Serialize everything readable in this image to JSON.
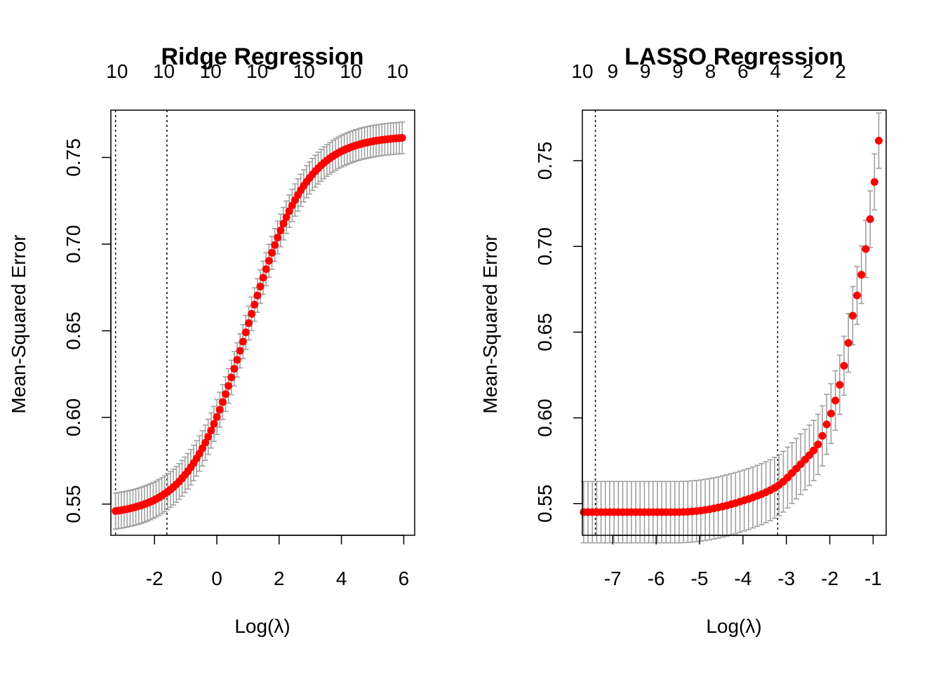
{
  "colors": {
    "points": "#ff0000",
    "errorbars": "#a0a0a0",
    "axes": "#000000",
    "background": "#ffffff"
  },
  "chart_data": [
    {
      "type": "scatter",
      "title": "Ridge Regression",
      "xlabel": "Log(λ)",
      "ylabel": "Mean-Squared Error",
      "xlim": [
        -3.4,
        6.35
      ],
      "ylim": [
        0.532,
        0.7773
      ],
      "x_ticks": [
        -2,
        0,
        2,
        4,
        6
      ],
      "x_tick_labels": [
        "-2",
        "0",
        "2",
        "4",
        "6"
      ],
      "y_ticks": [
        0.55,
        0.6,
        0.65,
        0.7,
        0.75
      ],
      "y_tick_labels": [
        "0.55",
        "0.60",
        "0.65",
        "0.70",
        "0.75"
      ],
      "top_axis_ticks": [
        -3.2,
        -1.7,
        -0.2,
        1.3,
        2.8,
        4.3,
        5.8
      ],
      "top_axis_labels": [
        "10",
        "10",
        "10",
        "10",
        "10",
        "10",
        "10"
      ],
      "vlines": [
        -3.25,
        -1.6
      ],
      "grid": false,
      "curve": {
        "type": "logistic",
        "x_from": -3.25,
        "x_to": 5.95,
        "n_points": 100,
        "y_low": 0.5435,
        "y_high": 0.7625,
        "midpoint": 1.0,
        "scale": 0.95
      },
      "errorbars": {
        "se_low": 0.0105,
        "se_high": 0.009
      }
    },
    {
      "type": "scatter",
      "title": "LASSO Regression",
      "xlabel": "Log(λ)",
      "ylabel": "Mean-Squared Error",
      "xlim": [
        -7.7,
        -0.7
      ],
      "ylim": [
        0.5315,
        0.7795
      ],
      "x_ticks": [
        -7,
        -6,
        -5,
        -4,
        -3,
        -2,
        -1
      ],
      "x_tick_labels": [
        "-7",
        "-6",
        "-5",
        "-4",
        "-3",
        "-2",
        "-1"
      ],
      "y_ticks": [
        0.55,
        0.6,
        0.65,
        0.7,
        0.75
      ],
      "y_tick_labels": [
        "0.55",
        "0.60",
        "0.65",
        "0.70",
        "0.75"
      ],
      "top_axis_ticks": [
        -7.7,
        -7.0,
        -6.25,
        -5.5,
        -4.75,
        -4.0,
        -3.25,
        -2.5,
        -1.75
      ],
      "top_axis_labels": [
        "10",
        "9",
        "9",
        "9",
        "8",
        "6",
        "4",
        "2",
        "2"
      ],
      "vlines": [
        -7.4,
        -3.2
      ],
      "grid": false,
      "points": [
        [
          -7.67,
          0.545
        ],
        [
          -7.57,
          0.545
        ],
        [
          -7.47,
          0.545
        ],
        [
          -7.37,
          0.545
        ],
        [
          -7.27,
          0.545
        ],
        [
          -7.17,
          0.545
        ],
        [
          -7.07,
          0.545
        ],
        [
          -6.97,
          0.545
        ],
        [
          -6.87,
          0.545
        ],
        [
          -6.77,
          0.545
        ],
        [
          -6.67,
          0.545
        ],
        [
          -6.57,
          0.545
        ],
        [
          -6.47,
          0.545
        ],
        [
          -6.37,
          0.545
        ],
        [
          -6.27,
          0.545
        ],
        [
          -6.17,
          0.545
        ],
        [
          -6.07,
          0.545
        ],
        [
          -5.97,
          0.545
        ],
        [
          -5.87,
          0.545
        ],
        [
          -5.77,
          0.545
        ],
        [
          -5.67,
          0.545
        ],
        [
          -5.57,
          0.545
        ],
        [
          -5.47,
          0.545
        ],
        [
          -5.37,
          0.5451
        ],
        [
          -5.27,
          0.5452
        ],
        [
          -5.17,
          0.5454
        ],
        [
          -5.07,
          0.5456
        ],
        [
          -4.97,
          0.5459
        ],
        [
          -4.87,
          0.5463
        ],
        [
          -4.77,
          0.5467
        ],
        [
          -4.67,
          0.5472
        ],
        [
          -4.57,
          0.5477
        ],
        [
          -4.47,
          0.5483
        ],
        [
          -4.37,
          0.5489
        ],
        [
          -4.27,
          0.5496
        ],
        [
          -4.17,
          0.5503
        ],
        [
          -4.07,
          0.5511
        ],
        [
          -3.97,
          0.5519
        ],
        [
          -3.87,
          0.5527
        ],
        [
          -3.77,
          0.5536
        ],
        [
          -3.67,
          0.5545
        ],
        [
          -3.57,
          0.5555
        ],
        [
          -3.47,
          0.5566
        ],
        [
          -3.37,
          0.5578
        ],
        [
          -3.27,
          0.5592
        ],
        [
          -3.17,
          0.5608
        ],
        [
          -3.07,
          0.5628
        ],
        [
          -2.97,
          0.5652
        ],
        [
          -2.87,
          0.5678
        ],
        [
          -2.77,
          0.5704
        ],
        [
          -2.67,
          0.573
        ],
        [
          -2.57,
          0.5756
        ],
        [
          -2.47,
          0.5782
        ],
        [
          -2.37,
          0.581
        ],
        [
          -2.27,
          0.5845
        ],
        [
          -2.17,
          0.5895
        ],
        [
          -2.07,
          0.5962
        ],
        [
          -1.97,
          0.6025
        ],
        [
          -1.87,
          0.6101
        ],
        [
          -1.77,
          0.6193
        ],
        [
          -1.67,
          0.6304
        ],
        [
          -1.57,
          0.6437
        ],
        [
          -1.47,
          0.6596
        ],
        [
          -1.37,
          0.6714
        ],
        [
          -1.27,
          0.6835
        ],
        [
          -1.17,
          0.6985
        ],
        [
          -1.07,
          0.7159
        ],
        [
          -0.97,
          0.7376
        ],
        [
          -0.87,
          0.7617
        ]
      ],
      "errorbars": {
        "se_low": 0.018,
        "se_high": 0.016
      }
    }
  ]
}
